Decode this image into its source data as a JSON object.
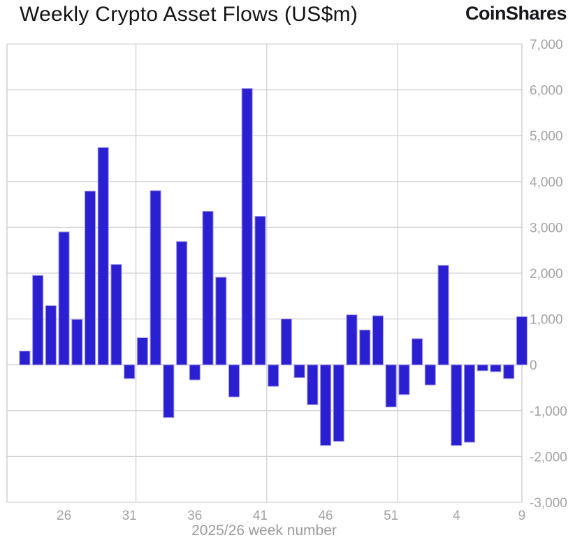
{
  "header": {
    "title": "Weekly Crypto Asset Flows (US$m)",
    "brand": "CoinShares"
  },
  "chart_data": {
    "type": "bar",
    "title": "Weekly Crypto Asset Flows (US$m)",
    "xlabel": "2025/26 week number",
    "ylabel": "",
    "ylim": [
      -3000,
      7000
    ],
    "grid": true,
    "legend_position": "none",
    "categories": [
      "23",
      "24",
      "25",
      "26",
      "27",
      "28",
      "29",
      "30",
      "31",
      "32",
      "33",
      "34",
      "35",
      "36",
      "37",
      "38",
      "39",
      "40",
      "41",
      "42",
      "43",
      "44",
      "45",
      "46",
      "47",
      "48",
      "49",
      "50",
      "51",
      "52",
      "1",
      "2",
      "3",
      "4",
      "5",
      "6",
      "7",
      "8",
      "9"
    ],
    "values": [
      300,
      1950,
      1290,
      2900,
      990,
      3790,
      4740,
      2190,
      -300,
      590,
      3800,
      -1150,
      2690,
      -330,
      3350,
      1910,
      -700,
      6030,
      3240,
      -470,
      1000,
      -280,
      -870,
      -1760,
      -1670,
      1090,
      760,
      1070,
      -920,
      -650,
      570,
      -440,
      2170,
      -1760,
      -1690,
      -130,
      -150,
      -300,
      1050
    ],
    "y_ticks": [
      7000,
      6000,
      5000,
      4000,
      3000,
      2000,
      1000,
      0,
      -1000,
      -2000,
      -3000
    ],
    "y_tick_labels": [
      "7,000",
      "6,000",
      "5,000",
      "4,000",
      "3,000",
      "2,000",
      "1,000",
      "0",
      "-1,000",
      "-2,000",
      "-3,000"
    ],
    "x_tick_indices": [
      3,
      8,
      13,
      18,
      23,
      28,
      33,
      38
    ],
    "x_tick_labels": [
      "26",
      "31",
      "36",
      "41",
      "46",
      "51",
      "4",
      "9"
    ],
    "v_gridline_after_index": [
      8,
      18,
      28
    ],
    "colors": {
      "bar": "#2b1fd2",
      "bar_edge": "#9d96e6",
      "grid": "#d2d2d2",
      "axis_border": "#c9c9c9",
      "tick_text": "#a3a3a3",
      "axis_title_text": "#9b9b9b",
      "title_text": "#141414"
    }
  }
}
